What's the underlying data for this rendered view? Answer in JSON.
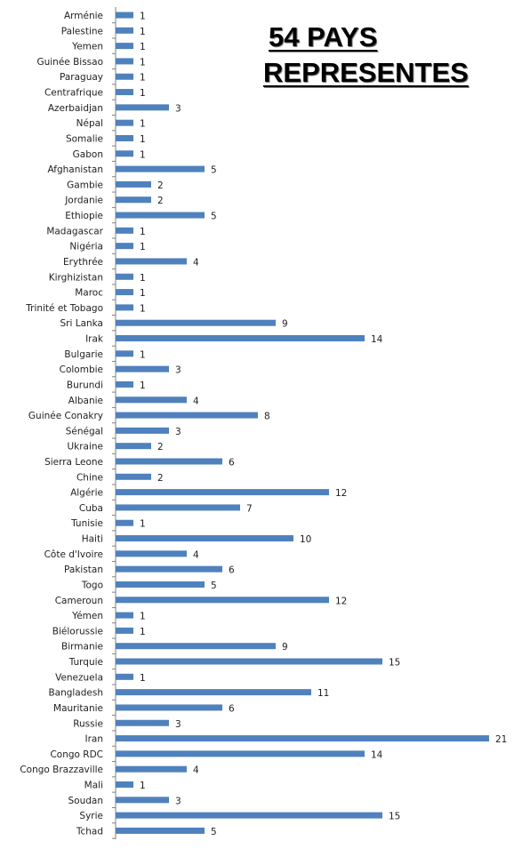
{
  "chart_data": {
    "type": "bar",
    "orientation": "horizontal",
    "title_line1": "54 PAYS",
    "title_line2": "REPRESENTES",
    "bar_color": "#4f81bd",
    "grid": false,
    "legend": "none",
    "xlim": [
      0,
      21
    ],
    "categories": [
      "Arménie",
      "Palestine",
      "Yemen",
      "Guinée Bissao",
      "Paraguay",
      "Centrafrique",
      "Azerbaidjan",
      "Népal",
      "Somalie",
      "Gabon",
      "Afghanistan",
      "Gambie",
      "Jordanie",
      "Ethiopie",
      "Madagascar",
      "Nigéria",
      "Erythrée",
      "Kirghizistan",
      "Maroc",
      "Trinité et Tobago",
      "Sri Lanka",
      "Irak",
      "Bulgarie",
      "Colombie",
      "Burundi",
      "Albanie",
      "Guinée Conakry",
      "Sénégal",
      "Ukraine",
      "Sierra Leone",
      "Chine",
      "Algérie",
      "Cuba",
      "Tunisie",
      "Haiti",
      "Côte d'Ivoire",
      "Pakistan",
      "Togo",
      "Cameroun",
      "Yémen",
      "Biélorussie",
      "Birmanie",
      "Turquie",
      "Venezuela",
      "Bangladesh",
      "Mauritanie",
      "Russie",
      "Iran",
      "Congo RDC",
      "Congo Brazzaville",
      "Mali",
      "Soudan",
      "Syrie",
      "Tchad"
    ],
    "values": [
      1,
      1,
      1,
      1,
      1,
      1,
      3,
      1,
      1,
      1,
      5,
      2,
      2,
      5,
      1,
      1,
      4,
      1,
      1,
      1,
      9,
      14,
      1,
      3,
      1,
      4,
      8,
      3,
      2,
      6,
      2,
      12,
      7,
      1,
      10,
      4,
      6,
      5,
      12,
      1,
      1,
      9,
      15,
      1,
      11,
      6,
      3,
      21,
      14,
      4,
      1,
      3,
      15,
      5
    ]
  }
}
